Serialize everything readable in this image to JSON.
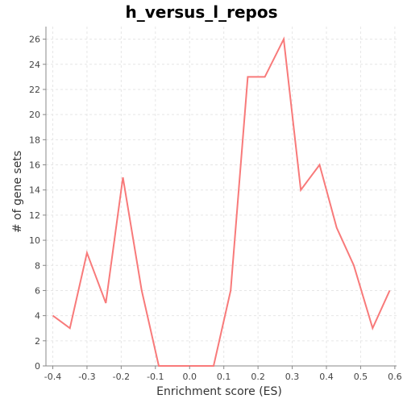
{
  "chart_data": {
    "type": "line",
    "title": "h_versus_l_repos",
    "xlabel": "Enrichment score (ES)",
    "ylabel": "# of gene sets",
    "xlim": [
      -0.42,
      0.605
    ],
    "ylim": [
      0,
      27
    ],
    "grid": true,
    "x_ticks": [
      -0.4,
      -0.3,
      -0.2,
      -0.1,
      0.0,
      0.1,
      0.2,
      0.3,
      0.4,
      0.5,
      0.6
    ],
    "x_tick_labels": [
      "-0.4",
      "-0.3",
      "-0.2",
      "-0.1",
      "0.0",
      "0.1",
      "0.2",
      "0.3",
      "0.4",
      "0.5",
      "0.6"
    ],
    "y_ticks": [
      0,
      2,
      4,
      6,
      8,
      10,
      12,
      14,
      16,
      18,
      20,
      22,
      24,
      26
    ],
    "y_tick_labels": [
      "0",
      "2",
      "4",
      "6",
      "8",
      "10",
      "12",
      "14",
      "16",
      "18",
      "20",
      "22",
      "24",
      "26"
    ],
    "series": [
      {
        "color": "#f87a7a",
        "x": [
          -0.4,
          -0.35,
          -0.3,
          -0.245,
          -0.195,
          -0.14,
          -0.09,
          -0.04,
          0.015,
          0.07,
          0.12,
          0.17,
          0.22,
          0.275,
          0.325,
          0.38,
          0.43,
          0.48,
          0.535,
          0.585
        ],
        "y": [
          4,
          3,
          9,
          5,
          15,
          6,
          0,
          0,
          0,
          0,
          6,
          23,
          23,
          26,
          14,
          16,
          11,
          8,
          3,
          6
        ]
      }
    ]
  }
}
